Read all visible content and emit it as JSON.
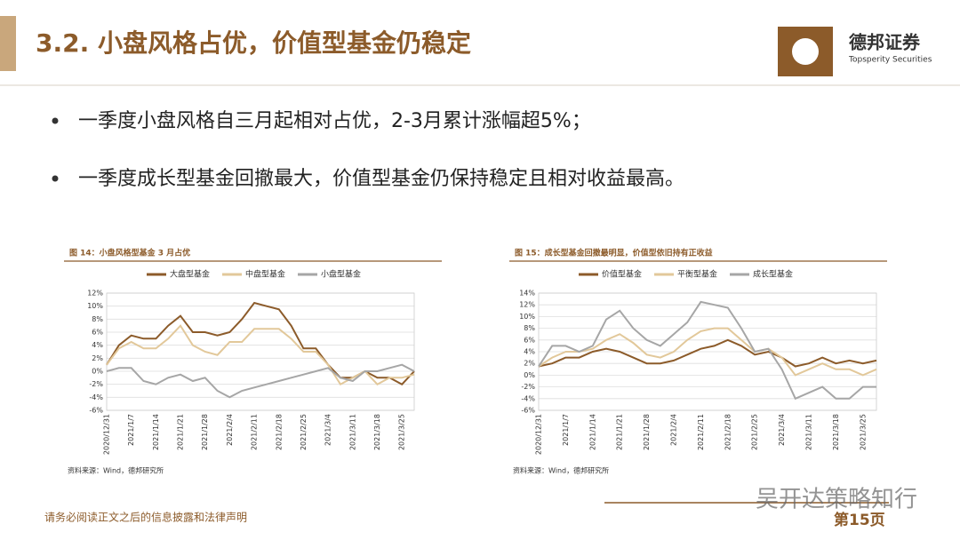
{
  "header": {
    "title": "3.2. 小盘风格占优，价值型基金仍稳定"
  },
  "logo": {
    "name": "德邦证券",
    "subtitle": "Topsperity Securities"
  },
  "bullets": [
    "一季度小盘风格自三月起相对占优，2-3月累计涨幅超5%；",
    "一季度成长型基金回撤最大，价值型基金仍保持稳定且相对收益最高。"
  ],
  "chart_data": [
    {
      "type": "line",
      "title": "图 14：小盘风格型基金 3 月占优",
      "source": "资料来源：Wind，德邦研究所",
      "grid": true,
      "categories": [
        "2020/12/31",
        null,
        "2021/1/7",
        null,
        "2021/1/14",
        null,
        "2021/1/21",
        null,
        "2021/1/28",
        null,
        "2021/2/4",
        null,
        "2021/2/11",
        null,
        "2021/2/18",
        null,
        "2021/2/25",
        null,
        "2021/3/4",
        null,
        "2021/3/11",
        null,
        "2021/3/18",
        null,
        "2021/3/25",
        null
      ],
      "ylim": [
        -6,
        12
      ],
      "yticks": [
        {
          "value": -6,
          "label": "-6%"
        },
        {
          "value": -4,
          "label": "-4%"
        },
        {
          "value": -2,
          "label": "-2%"
        },
        {
          "value": 0,
          "label": "0%"
        },
        {
          "value": 2,
          "label": "2%"
        },
        {
          "value": 4,
          "label": "4%"
        },
        {
          "value": 6,
          "label": "6%"
        },
        {
          "value": 8,
          "label": "8%"
        },
        {
          "value": 10,
          "label": "10%"
        },
        {
          "value": 12,
          "label": "12%"
        }
      ],
      "series": [
        {
          "name": "大盘型基金",
          "color": "#8c5b2a",
          "values": [
            1,
            4,
            5.5,
            5,
            5,
            7,
            8.5,
            6,
            6,
            5.5,
            6,
            8,
            10.5,
            10,
            9.5,
            7,
            3.5,
            3.5,
            1,
            -1,
            -1,
            0,
            -1,
            -1,
            -2,
            0
          ]
        },
        {
          "name": "中盘型基金",
          "color": "#e2c89a",
          "values": [
            1,
            3.5,
            4.5,
            3.5,
            3.5,
            5,
            7,
            4,
            3,
            2.5,
            4.5,
            4.5,
            6.5,
            6.5,
            6.5,
            5,
            3,
            3,
            1,
            -2,
            -1,
            0,
            -2,
            -1,
            -1,
            -0.5
          ]
        },
        {
          "name": "小盘型基金",
          "color": "#a6a6a6",
          "values": [
            0,
            0.5,
            0.5,
            -1.5,
            -2,
            -1,
            -0.5,
            -1.5,
            -1,
            -3,
            -4,
            -3,
            -2.5,
            -2,
            -1.5,
            -1,
            -0.5,
            0,
            0.5,
            -1,
            -1.5,
            0,
            0,
            0.5,
            1,
            0
          ]
        }
      ]
    },
    {
      "type": "line",
      "title": "图 15：成长型基金回撤最明显，价值型依旧持有正收益",
      "source": "资料来源：Wind，德邦研究所",
      "grid": true,
      "categories": [
        "2020/12/31",
        null,
        "2021/1/7",
        null,
        "2021/1/14",
        null,
        "2021/1/21",
        null,
        "2021/1/28",
        null,
        "2021/2/4",
        null,
        "2021/2/11",
        null,
        "2021/2/18",
        null,
        "2021/2/25",
        null,
        "2021/3/4",
        null,
        "2021/3/11",
        null,
        "2021/3/18",
        null,
        "2021/3/25",
        null
      ],
      "ylim": [
        -6,
        14
      ],
      "yticks": [
        {
          "value": -6,
          "label": "-6%"
        },
        {
          "value": -4,
          "label": "-4%"
        },
        {
          "value": -2,
          "label": "-2%"
        },
        {
          "value": 0,
          "label": "0%"
        },
        {
          "value": 2,
          "label": "2%"
        },
        {
          "value": 4,
          "label": "4%"
        },
        {
          "value": 6,
          "label": "6%"
        },
        {
          "value": 8,
          "label": "8%"
        },
        {
          "value": 10,
          "label": "10%"
        },
        {
          "value": 12,
          "label": "12%"
        },
        {
          "value": 14,
          "label": "14%"
        }
      ],
      "series": [
        {
          "name": "价值型基金",
          "color": "#8c5b2a",
          "values": [
            1.5,
            2,
            3,
            3,
            4,
            4.5,
            4,
            3,
            2,
            2,
            2.5,
            3.5,
            4.5,
            5,
            6,
            5,
            3.5,
            4,
            3,
            1.5,
            2,
            3,
            2,
            2.5,
            2,
            2.5
          ]
        },
        {
          "name": "平衡型基金",
          "color": "#e2c89a",
          "values": [
            1.5,
            3,
            4,
            4,
            4.5,
            6,
            7,
            5.5,
            3.5,
            3,
            4,
            6,
            7.5,
            8,
            8,
            6,
            4,
            4.5,
            3,
            0,
            1,
            2,
            1,
            1,
            0,
            1
          ]
        },
        {
          "name": "成长型基金",
          "color": "#a6a6a6",
          "values": [
            1.5,
            5,
            5,
            4,
            5,
            9.5,
            11,
            8,
            6,
            5,
            7,
            9,
            12.5,
            12,
            11.5,
            8,
            4,
            4.5,
            1,
            -4,
            -3,
            -2,
            -4,
            -4,
            -2,
            -2
          ]
        }
      ]
    }
  ],
  "footer": {
    "disclaimer": "请务必阅读正文之后的信息披露和法律声明",
    "page": "第15页"
  },
  "watermark": "吴开达策略知行"
}
